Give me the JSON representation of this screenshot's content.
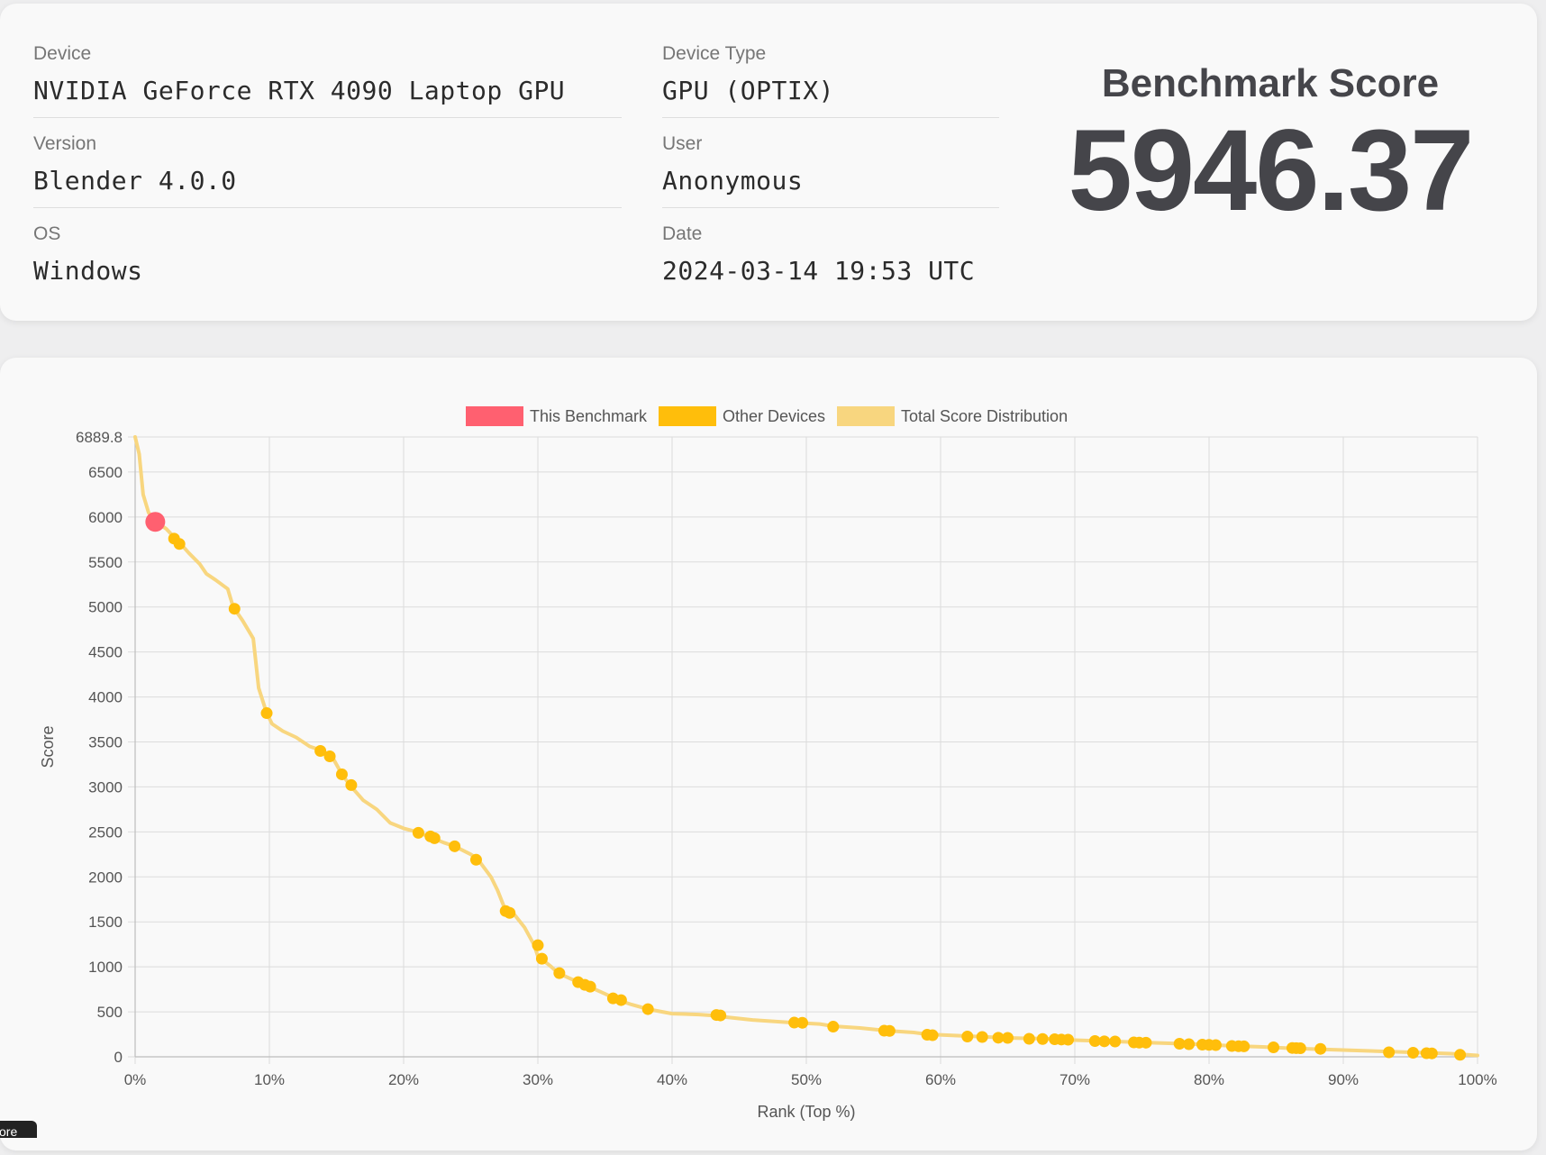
{
  "info": {
    "device_label": "Device",
    "device_value": "NVIDIA GeForce RTX 4090 Laptop GPU",
    "device_type_label": "Device Type",
    "device_type_value": "GPU (OPTIX)",
    "version_label": "Version",
    "version_value": "Blender 4.0.0",
    "user_label": "User",
    "user_value": "Anonymous",
    "os_label": "OS",
    "os_value": "Windows",
    "date_label": "Date",
    "date_value": "2024-03-14 19:53 UTC"
  },
  "score": {
    "title": "Benchmark Score",
    "value": "5946.37"
  },
  "tooltip_fragment": "core",
  "colors": {
    "this_benchmark": "#ff6070",
    "other_devices": "#ffbe0b",
    "distribution": "#f8d67f",
    "grid": "#dcdcdc",
    "text": "#555555"
  },
  "chart_data": {
    "type": "line",
    "xlabel": "Rank (Top %)",
    "ylabel": "Score",
    "xlim": [
      0,
      100
    ],
    "ylim": [
      0,
      6889.8
    ],
    "x_ticks": [
      "0%",
      "10%",
      "20%",
      "30%",
      "40%",
      "50%",
      "60%",
      "70%",
      "80%",
      "90%",
      "100%"
    ],
    "y_ticks": [
      "0",
      "500",
      "1000",
      "1500",
      "2000",
      "2500",
      "3000",
      "3500",
      "4000",
      "4500",
      "5000",
      "5500",
      "6000",
      "6500",
      "6889.8"
    ],
    "grid": true,
    "legend_position": "top-center",
    "legend": [
      "This Benchmark",
      "Other Devices",
      "Total Score Distribution"
    ],
    "series": [
      {
        "name": "Total Score Distribution",
        "points": [
          [
            0,
            6889.8
          ],
          [
            0.3,
            6700
          ],
          [
            0.6,
            6250
          ],
          [
            1.0,
            6050
          ],
          [
            1.5,
            5950
          ],
          [
            2.3,
            5870
          ],
          [
            3.0,
            5760
          ],
          [
            3.4,
            5700
          ],
          [
            4.0,
            5600
          ],
          [
            4.8,
            5480
          ],
          [
            5.3,
            5370
          ],
          [
            6.0,
            5300
          ],
          [
            6.9,
            5200
          ],
          [
            7.3,
            5000
          ],
          [
            8.0,
            4850
          ],
          [
            8.8,
            4650
          ],
          [
            9.2,
            4100
          ],
          [
            9.8,
            3820
          ],
          [
            10.2,
            3700
          ],
          [
            11,
            3620
          ],
          [
            12,
            3550
          ],
          [
            13,
            3450
          ],
          [
            14,
            3400
          ],
          [
            14.7,
            3330
          ],
          [
            15.4,
            3140
          ],
          [
            16,
            3020
          ],
          [
            17,
            2850
          ],
          [
            18,
            2750
          ],
          [
            19,
            2600
          ],
          [
            20,
            2540
          ],
          [
            21,
            2500
          ],
          [
            22,
            2440
          ],
          [
            23,
            2380
          ],
          [
            23.8,
            2340
          ],
          [
            25,
            2250
          ],
          [
            25.5,
            2200
          ],
          [
            26.5,
            2000
          ],
          [
            27,
            1850
          ],
          [
            27.5,
            1660
          ],
          [
            28.2,
            1590
          ],
          [
            29,
            1440
          ],
          [
            29.7,
            1250
          ],
          [
            30,
            1120
          ],
          [
            31,
            1000
          ],
          [
            31.5,
            930
          ],
          [
            33,
            830
          ],
          [
            33.8,
            780
          ],
          [
            35,
            700
          ],
          [
            36,
            630
          ],
          [
            37,
            580
          ],
          [
            38.2,
            530
          ],
          [
            40,
            480
          ],
          [
            42,
            470
          ],
          [
            43,
            460
          ],
          [
            43.8,
            445
          ],
          [
            46,
            410
          ],
          [
            48,
            390
          ],
          [
            49,
            380
          ],
          [
            51,
            365
          ],
          [
            52,
            340
          ],
          [
            54,
            320
          ],
          [
            56,
            290
          ],
          [
            58,
            270
          ],
          [
            59,
            250
          ],
          [
            62,
            230
          ],
          [
            65,
            210
          ],
          [
            68,
            200
          ],
          [
            69,
            190
          ],
          [
            71,
            180
          ],
          [
            73,
            170
          ],
          [
            75,
            160
          ],
          [
            77,
            150
          ],
          [
            79,
            140
          ],
          [
            82,
            120
          ],
          [
            84,
            110
          ],
          [
            86,
            95
          ],
          [
            88,
            85
          ],
          [
            90,
            75
          ],
          [
            92,
            65
          ],
          [
            94,
            55
          ],
          [
            96,
            45
          ],
          [
            98,
            35
          ],
          [
            100,
            15
          ]
        ]
      },
      {
        "name": "Other Devices",
        "points": [
          [
            2.9,
            5760
          ],
          [
            3.3,
            5700
          ],
          [
            7.4,
            4980
          ],
          [
            9.8,
            3820
          ],
          [
            13.8,
            3400
          ],
          [
            14.5,
            3340
          ],
          [
            15.4,
            3140
          ],
          [
            16.1,
            3020
          ],
          [
            21.1,
            2490
          ],
          [
            22.0,
            2450
          ],
          [
            22.3,
            2430
          ],
          [
            23.8,
            2340
          ],
          [
            25.4,
            2190
          ],
          [
            27.6,
            1620
          ],
          [
            27.9,
            1600
          ],
          [
            30.0,
            1240
          ],
          [
            30.3,
            1090
          ],
          [
            31.6,
            930
          ],
          [
            33.0,
            830
          ],
          [
            33.5,
            800
          ],
          [
            33.9,
            780
          ],
          [
            35.6,
            650
          ],
          [
            36.2,
            630
          ],
          [
            38.2,
            530
          ],
          [
            43.3,
            465
          ],
          [
            43.6,
            460
          ],
          [
            49.1,
            380
          ],
          [
            49.7,
            378
          ],
          [
            52.0,
            335
          ],
          [
            55.8,
            290
          ],
          [
            56.2,
            288
          ],
          [
            59.0,
            245
          ],
          [
            59.4,
            240
          ],
          [
            62.0,
            225
          ],
          [
            63.1,
            220
          ],
          [
            64.3,
            212
          ],
          [
            65.0,
            210
          ],
          [
            66.6,
            200
          ],
          [
            67.6,
            198
          ],
          [
            68.5,
            195
          ],
          [
            69.0,
            192
          ],
          [
            69.5,
            190
          ],
          [
            71.5,
            175
          ],
          [
            72.2,
            172
          ],
          [
            73.0,
            170
          ],
          [
            74.4,
            160
          ],
          [
            74.8,
            158
          ],
          [
            75.3,
            157
          ],
          [
            77.8,
            145
          ],
          [
            78.5,
            140
          ],
          [
            79.5,
            135
          ],
          [
            80.0,
            133
          ],
          [
            80.5,
            130
          ],
          [
            81.7,
            120
          ],
          [
            82.2,
            118
          ],
          [
            82.6,
            116
          ],
          [
            84.8,
            105
          ],
          [
            86.2,
            98
          ],
          [
            86.5,
            96
          ],
          [
            86.8,
            95
          ],
          [
            88.3,
            88
          ],
          [
            93.4,
            50
          ],
          [
            95.2,
            45
          ],
          [
            96.2,
            40
          ],
          [
            96.6,
            38
          ],
          [
            98.7,
            22
          ]
        ]
      },
      {
        "name": "This Benchmark",
        "points": [
          [
            1.5,
            5946.37
          ]
        ]
      }
    ]
  }
}
